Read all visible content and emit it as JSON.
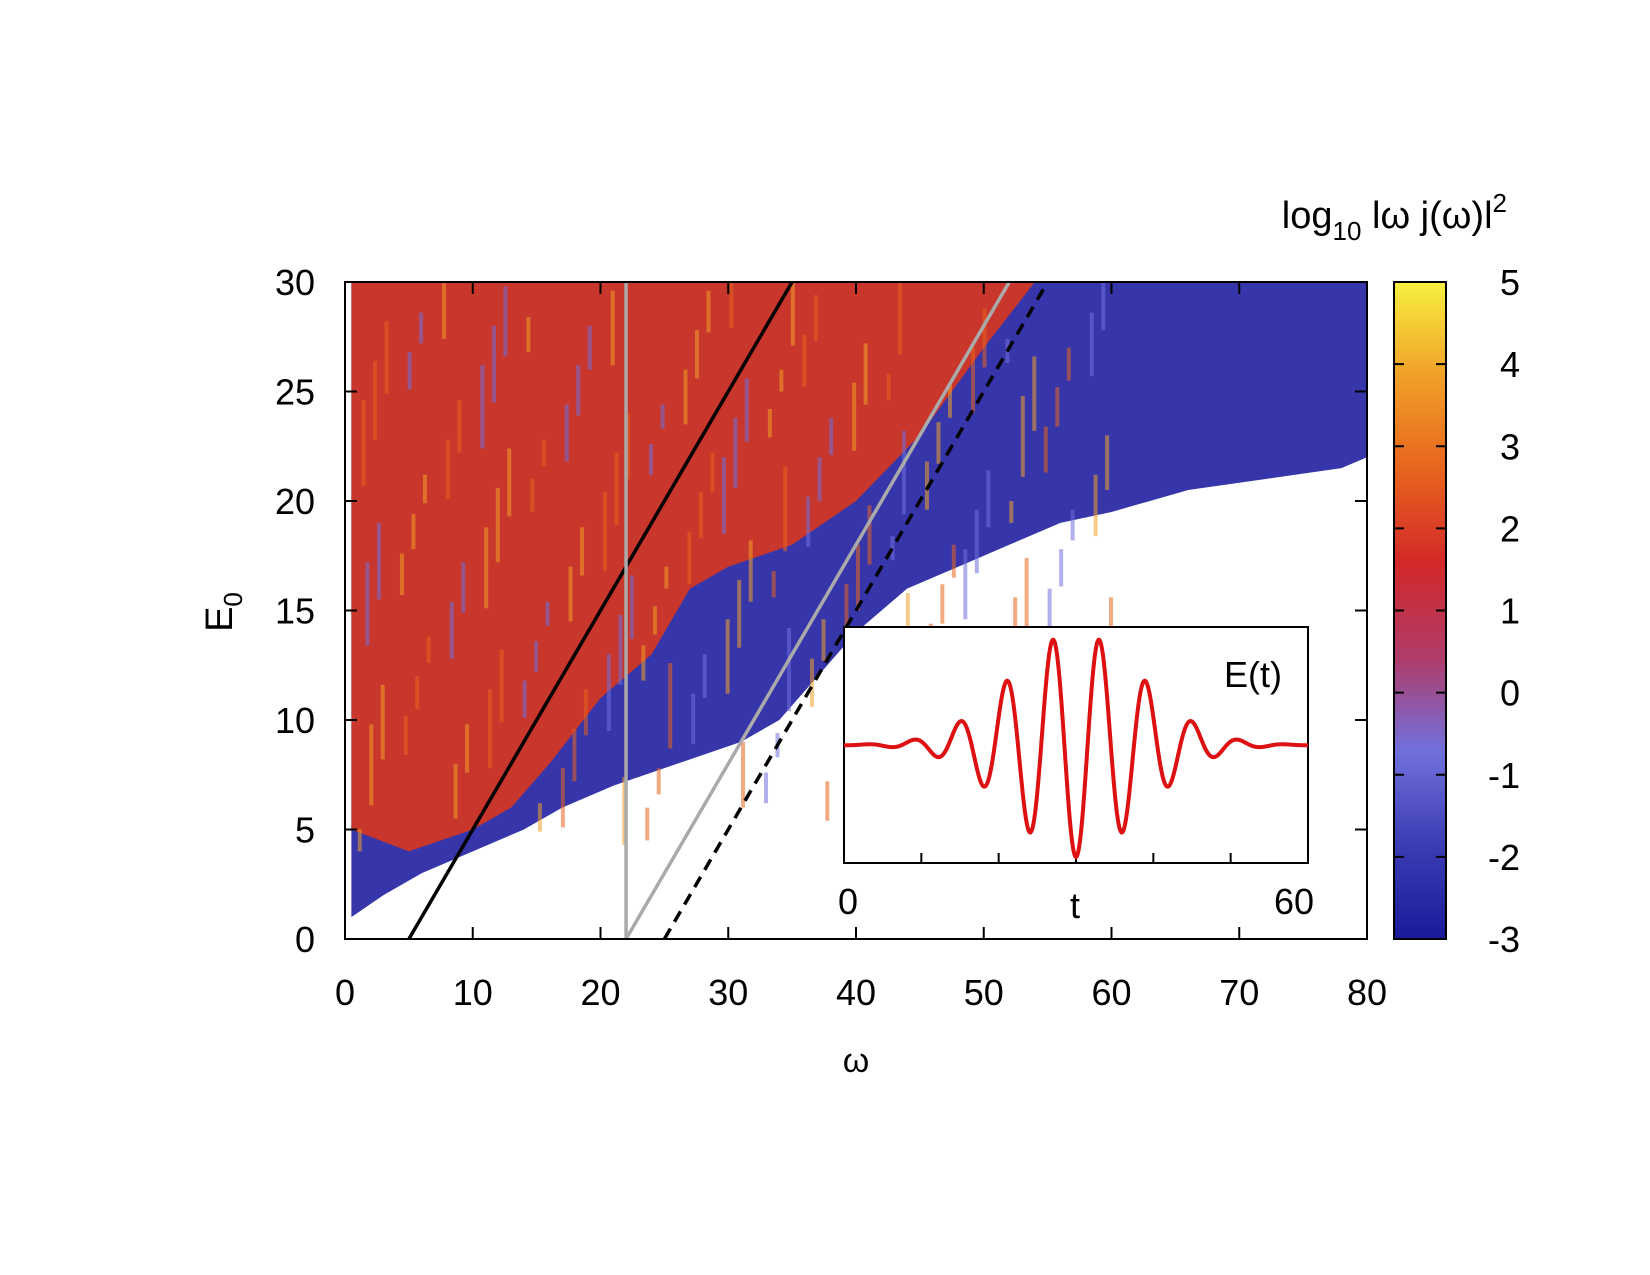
{
  "chart_data": [
    {
      "type": "heatmap",
      "xlabel": "ω",
      "ylabel": "E",
      "ylabel_sub": "0",
      "xlim": [
        0,
        80
      ],
      "ylim": [
        0,
        30
      ],
      "xticks": [
        0,
        10,
        20,
        30,
        40,
        50,
        60,
        70,
        80
      ],
      "yticks": [
        0,
        5,
        10,
        15,
        20,
        25,
        30
      ],
      "grid": false,
      "colorbar": {
        "title_main": "log",
        "title_sub": "10",
        "title_rest": " lω j(ω)l",
        "title_sup": "2",
        "range": [
          -3,
          5
        ],
        "ticks": [
          5,
          4,
          3,
          2,
          1,
          0,
          -1,
          -2,
          -3
        ],
        "colors": [
          "#1a1a9a",
          "#3c3cb4",
          "#7070dc",
          "#b03c6a",
          "#d22828",
          "#e8641e",
          "#f0a028",
          "#f8f040"
        ]
      },
      "signal_boundary": [
        [
          0.5,
          1
        ],
        [
          3,
          2
        ],
        [
          6,
          3
        ],
        [
          10,
          4
        ],
        [
          14,
          5
        ],
        [
          17,
          6
        ],
        [
          21,
          7
        ],
        [
          26,
          8
        ],
        [
          31,
          9
        ],
        [
          34,
          10
        ],
        [
          37,
          12
        ],
        [
          40,
          14
        ],
        [
          44,
          16
        ],
        [
          48,
          17
        ],
        [
          52,
          18
        ],
        [
          56,
          19
        ],
        [
          60,
          19.5
        ],
        [
          66,
          20.5
        ],
        [
          72,
          21
        ],
        [
          78,
          21.5
        ],
        [
          80,
          22
        ]
      ],
      "red_boundary": [
        [
          0.5,
          5
        ],
        [
          5,
          4
        ],
        [
          10,
          5
        ],
        [
          13,
          6
        ],
        [
          16,
          8
        ],
        [
          20,
          11
        ],
        [
          24,
          13
        ],
        [
          27,
          16
        ],
        [
          30,
          17
        ],
        [
          35,
          18
        ],
        [
          40,
          20
        ],
        [
          45,
          23
        ],
        [
          50,
          27
        ],
        [
          54,
          30
        ]
      ],
      "lines": [
        {
          "style": "solid",
          "color": "#000000",
          "points": [
            [
              5,
              0
            ],
            [
              35,
              30
            ]
          ]
        },
        {
          "style": "solid",
          "color": "#aaaaaa",
          "points": [
            [
              22,
              0
            ],
            [
              22,
              30
            ]
          ]
        },
        {
          "style": "solid",
          "color": "#aaaaaa",
          "points": [
            [
              22,
              0
            ],
            [
              52,
              30
            ]
          ]
        },
        {
          "style": "dashed",
          "color": "#000000",
          "points": [
            [
              25,
              0
            ],
            [
              55,
              30
            ]
          ]
        }
      ]
    },
    {
      "type": "line",
      "series": [
        {
          "name": "E(t)",
          "color": "#dd1111"
        }
      ],
      "label": "E(t)",
      "xlabel": "t",
      "xlim": [
        0,
        60
      ],
      "xticks": [
        0,
        60
      ],
      "t0": 30,
      "period": 6,
      "envelope_sigma": 12
    }
  ]
}
